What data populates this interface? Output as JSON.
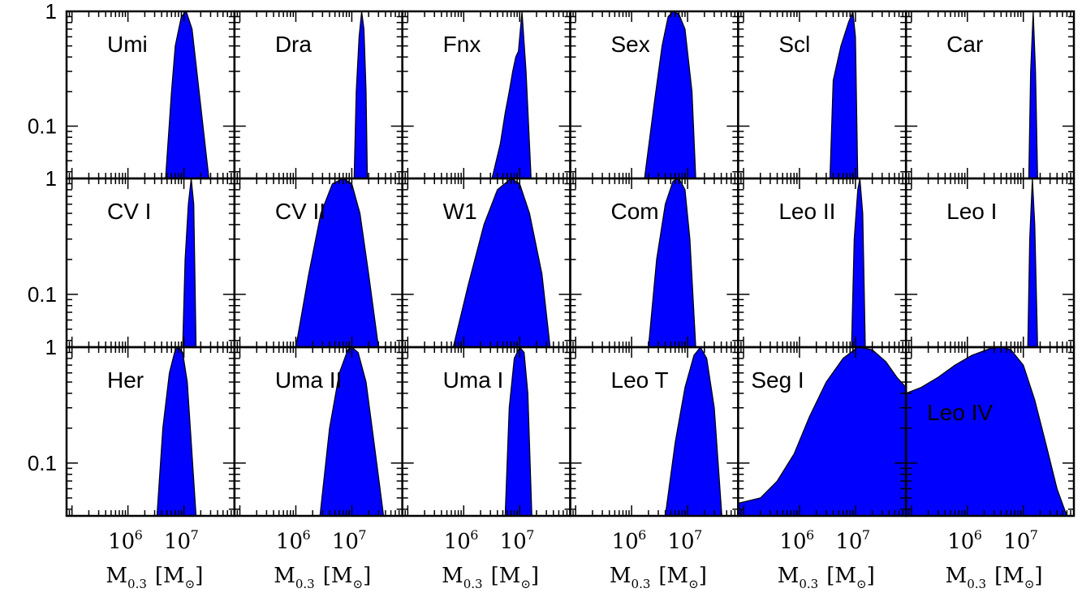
{
  "chart_data": {
    "type": "area",
    "fill_color": "#0000ff",
    "edge_color": "#000000",
    "x_scale": "log",
    "y_scale": "log",
    "xlim": [
      80000,
      80000000
    ],
    "ylim": [
      0.035,
      1
    ],
    "y_ticks": [
      {
        "value": 0.1,
        "label": "0.1"
      },
      {
        "value": 1,
        "label": "1"
      }
    ],
    "x_ticks": [
      {
        "value": 1000000,
        "base": "10",
        "exp": "6"
      },
      {
        "value": 10000000,
        "base": "10",
        "exp": "7"
      }
    ],
    "xlabel": {
      "main": "M",
      "sub": "0.3",
      "unit": "[M",
      "unit_sub": "⊙",
      "close": "]"
    },
    "panels": [
      {
        "name": "Umi",
        "x": [
          4700000,
          6000000,
          7000000,
          9000000,
          11000000,
          14000000,
          20000000,
          28000000
        ],
        "y": [
          0.035,
          0.2,
          0.5,
          0.9,
          1.0,
          0.7,
          0.15,
          0.035
        ]
      },
      {
        "name": "Dra",
        "x": [
          11000000,
          12000000,
          13500000,
          15000000,
          16500000,
          18000000,
          19000000
        ],
        "y": [
          0.035,
          0.2,
          0.6,
          1.0,
          0.7,
          0.2,
          0.035
        ]
      },
      {
        "name": "Fnx",
        "x": [
          3200000,
          4500000,
          5500000,
          6500000,
          7500000,
          8500000,
          9500000,
          11000000,
          13000000,
          16000000
        ],
        "y": [
          0.035,
          0.07,
          0.13,
          0.2,
          0.3,
          0.4,
          0.45,
          1.0,
          0.3,
          0.035
        ]
      },
      {
        "name": "Sex",
        "x": [
          1700000,
          2500000,
          3500000,
          4500000,
          5500000,
          7000000,
          9000000,
          12000000,
          14000000
        ],
        "y": [
          0.035,
          0.15,
          0.5,
          0.9,
          1.0,
          0.95,
          0.7,
          0.2,
          0.035
        ]
      },
      {
        "name": "Scl",
        "x": [
          3500000,
          4000000,
          5500000,
          7500000,
          9000000,
          10000000,
          11000000
        ],
        "y": [
          0.035,
          0.25,
          0.5,
          0.8,
          1.0,
          0.6,
          0.035
        ]
      },
      {
        "name": "Car",
        "x": [
          12500000,
          13500000,
          15000000,
          16500000,
          18000000
        ],
        "y": [
          0.035,
          0.3,
          1.0,
          0.3,
          0.035
        ]
      },
      {
        "name": "CV I",
        "x": [
          9500000,
          10500000,
          12000000,
          13500000,
          15000000,
          16500000
        ],
        "y": [
          0.035,
          0.2,
          0.6,
          1.0,
          0.6,
          0.035
        ]
      },
      {
        "name": "CV II",
        "x": [
          1000000,
          1700000,
          2800000,
          4500000,
          7000000,
          10000000,
          14000000,
          20000000,
          30000000
        ],
        "y": [
          0.035,
          0.15,
          0.5,
          0.9,
          1.0,
          0.9,
          0.5,
          0.15,
          0.035
        ]
      },
      {
        "name": "W1",
        "x": [
          650000,
          1200000,
          2300000,
          4000000,
          7000000,
          10000000,
          15000000,
          25000000,
          35000000
        ],
        "y": [
          0.035,
          0.12,
          0.4,
          0.8,
          1.0,
          0.9,
          0.5,
          0.15,
          0.035
        ]
      },
      {
        "name": "Com",
        "x": [
          2000000,
          2800000,
          4000000,
          5500000,
          7000000,
          9000000,
          11000000,
          14000000
        ],
        "y": [
          0.035,
          0.2,
          0.6,
          0.95,
          1.0,
          0.8,
          0.3,
          0.035
        ]
      },
      {
        "name": "Leo II",
        "x": [
          8500000,
          9500000,
          11000000,
          12000000,
          13500000,
          15000000
        ],
        "y": [
          0.035,
          0.3,
          0.8,
          1.0,
          0.5,
          0.035
        ]
      },
      {
        "name": "Leo I",
        "x": [
          12000000,
          13000000,
          14500000,
          16000000,
          18000000
        ],
        "y": [
          0.035,
          0.3,
          1.0,
          0.4,
          0.035
        ]
      },
      {
        "name": "Her",
        "x": [
          3300000,
          4200000,
          5500000,
          7000000,
          8000000,
          9500000,
          11500000,
          16500000
        ],
        "y": [
          0.035,
          0.2,
          0.6,
          0.95,
          1.0,
          0.9,
          0.5,
          0.035
        ]
      },
      {
        "name": "Uma II",
        "x": [
          2700000,
          4000000,
          6000000,
          8500000,
          10000000,
          13000000,
          18000000,
          25000000,
          37000000
        ],
        "y": [
          0.035,
          0.2,
          0.6,
          0.95,
          1.0,
          0.9,
          0.5,
          0.15,
          0.035
        ]
      },
      {
        "name": "Uma I",
        "x": [
          5500000,
          6500000,
          8000000,
          10000000,
          12000000,
          14000000,
          16500000
        ],
        "y": [
          0.035,
          0.3,
          0.8,
          1.0,
          0.9,
          0.4,
          0.035
        ]
      },
      {
        "name": "Leo T",
        "x": [
          4000000,
          6000000,
          9000000,
          13000000,
          17000000,
          22000000,
          30000000,
          41000000
        ],
        "y": [
          0.035,
          0.15,
          0.45,
          0.85,
          1.0,
          0.8,
          0.3,
          0.035
        ]
      },
      {
        "name": "Seg I",
        "x": [
          80000,
          200000,
          400000,
          800000,
          1500000,
          3000000,
          6000000,
          11000000,
          20000000,
          35000000,
          55000000,
          80000000
        ],
        "y": [
          0.045,
          0.05,
          0.07,
          0.12,
          0.25,
          0.5,
          0.8,
          1.0,
          0.95,
          0.75,
          0.55,
          0.45
        ]
      },
      {
        "name": "Leo IV",
        "x": [
          80000,
          150000,
          300000,
          600000,
          1200000,
          2500000,
          4000000,
          6000000,
          10000000,
          16000000,
          25000000,
          40000000,
          60000000
        ],
        "y": [
          0.4,
          0.45,
          0.55,
          0.7,
          0.85,
          0.97,
          1.0,
          0.95,
          0.7,
          0.35,
          0.15,
          0.06,
          0.035
        ]
      }
    ]
  }
}
